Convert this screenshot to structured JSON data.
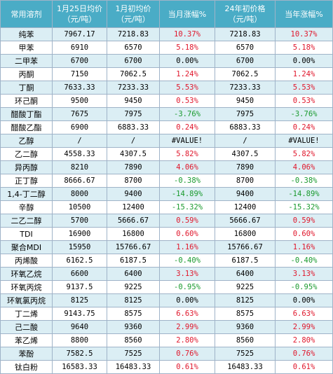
{
  "header": {
    "col1": "常用溶剂",
    "col2_line1": "1月25日均价",
    "col2_line2": "（元/吨）",
    "col3_line1": "1月初均价",
    "col3_line2": "（元/吨）",
    "col4": "当月涨幅%",
    "col5_line1": "24年初价格",
    "col5_line2": "（元/吨）",
    "col6": "当年涨幅%"
  },
  "colors": {
    "header_bg": "#4aacc6",
    "stripe": "#dbeef4",
    "positive": "#e0162b",
    "negative": "#1a9a2e"
  },
  "rows": [
    {
      "name": "纯苯",
      "price": "7967.17",
      "start": "7218.83",
      "month": "10.37%",
      "year_start": "7218.83",
      "year": "10.37%",
      "month_sign": "pos",
      "year_sign": "pos"
    },
    {
      "name": "甲苯",
      "price": "6910",
      "start": "6570",
      "month": "5.18%",
      "year_start": "6570",
      "year": "5.18%",
      "month_sign": "pos",
      "year_sign": "pos"
    },
    {
      "name": "二甲苯",
      "price": "6700",
      "start": "6700",
      "month": "0.00%",
      "year_start": "6700",
      "year": "0.00%",
      "month_sign": "zero",
      "year_sign": "zero"
    },
    {
      "name": "丙酮",
      "price": "7150",
      "start": "7062.5",
      "month": "1.24%",
      "year_start": "7062.5",
      "year": "1.24%",
      "month_sign": "pos",
      "year_sign": "pos"
    },
    {
      "name": "丁酮",
      "price": "7633.33",
      "start": "7233.33",
      "month": "5.53%",
      "year_start": "7233.33",
      "year": "5.53%",
      "month_sign": "pos",
      "year_sign": "pos"
    },
    {
      "name": "环己酮",
      "price": "9500",
      "start": "9450",
      "month": "0.53%",
      "year_start": "9450",
      "year": "0.53%",
      "month_sign": "pos",
      "year_sign": "pos"
    },
    {
      "name": "醋酸丁酯",
      "price": "7675",
      "start": "7975",
      "month": "-3.76%",
      "year_start": "7975",
      "year": "-3.76%",
      "month_sign": "neg",
      "year_sign": "neg"
    },
    {
      "name": "醋酸乙酯",
      "price": "6900",
      "start": "6883.33",
      "month": "0.24%",
      "year_start": "6883.33",
      "year": "0.24%",
      "month_sign": "pos",
      "year_sign": "pos"
    },
    {
      "name": "乙醇",
      "price": "/",
      "start": "/",
      "month": "#VALUE!",
      "year_start": "/",
      "year": "#VALUE!",
      "month_sign": "zero",
      "year_sign": "zero"
    },
    {
      "name": "乙二醇",
      "price": "4558.33",
      "start": "4307.5",
      "month": "5.82%",
      "year_start": "4307.5",
      "year": "5.82%",
      "month_sign": "pos",
      "year_sign": "pos"
    },
    {
      "name": "异丙醇",
      "price": "8210",
      "start": "7890",
      "month": "4.06%",
      "year_start": "7890",
      "year": "4.06%",
      "month_sign": "pos",
      "year_sign": "pos"
    },
    {
      "name": "正丁醇",
      "price": "8666.67",
      "start": "8700",
      "month": "-0.38%",
      "year_start": "8700",
      "year": "-0.38%",
      "month_sign": "neg",
      "year_sign": "neg"
    },
    {
      "name": "1,4-丁二醇",
      "price": "8000",
      "start": "9400",
      "month": "-14.89%",
      "year_start": "9400",
      "year": "-14.89%",
      "month_sign": "neg",
      "year_sign": "neg"
    },
    {
      "name": "辛醇",
      "price": "10500",
      "start": "12400",
      "month": "-15.32%",
      "year_start": "12400",
      "year": "-15.32%",
      "month_sign": "neg",
      "year_sign": "neg"
    },
    {
      "name": "二乙二醇",
      "price": "5700",
      "start": "5666.67",
      "month": "0.59%",
      "year_start": "5666.67",
      "year": "0.59%",
      "month_sign": "pos",
      "year_sign": "pos"
    },
    {
      "name": "TDI",
      "price": "16900",
      "start": "16800",
      "month": "0.60%",
      "year_start": "16800",
      "year": "0.60%",
      "month_sign": "pos",
      "year_sign": "pos"
    },
    {
      "name": "聚合MDI",
      "price": "15950",
      "start": "15766.67",
      "month": "1.16%",
      "year_start": "15766.67",
      "year": "1.16%",
      "month_sign": "pos",
      "year_sign": "pos"
    },
    {
      "name": "丙烯酸",
      "price": "6162.5",
      "start": "6187.5",
      "month": "-0.40%",
      "year_start": "6187.5",
      "year": "-0.40%",
      "month_sign": "neg",
      "year_sign": "neg"
    },
    {
      "name": "环氧乙烷",
      "price": "6600",
      "start": "6400",
      "month": "3.13%",
      "year_start": "6400",
      "year": "3.13%",
      "month_sign": "pos",
      "year_sign": "pos"
    },
    {
      "name": "环氧丙烷",
      "price": "9137.5",
      "start": "9225",
      "month": "-0.95%",
      "year_start": "9225",
      "year": "-0.95%",
      "month_sign": "neg",
      "year_sign": "neg"
    },
    {
      "name": "环氧氯丙烷",
      "price": "8125",
      "start": "8125",
      "month": "0.00%",
      "year_start": "8125",
      "year": "0.00%",
      "month_sign": "zero",
      "year_sign": "zero"
    },
    {
      "name": "丁二烯",
      "price": "9143.75",
      "start": "8575",
      "month": "6.63%",
      "year_start": "8575",
      "year": "6.63%",
      "month_sign": "pos",
      "year_sign": "pos"
    },
    {
      "name": "己二酸",
      "price": "9640",
      "start": "9360",
      "month": "2.99%",
      "year_start": "9360",
      "year": "2.99%",
      "month_sign": "pos",
      "year_sign": "pos"
    },
    {
      "name": "苯乙烯",
      "price": "8800",
      "start": "8560",
      "month": "2.80%",
      "year_start": "8560",
      "year": "2.80%",
      "month_sign": "pos",
      "year_sign": "pos"
    },
    {
      "name": "苯酚",
      "price": "7582.5",
      "start": "7525",
      "month": "0.76%",
      "year_start": "7525",
      "year": "0.76%",
      "month_sign": "pos",
      "year_sign": "pos"
    },
    {
      "name": "钛白粉",
      "price": "16583.33",
      "start": "16483.33",
      "month": "0.61%",
      "year_start": "16483.33",
      "year": "0.61%",
      "month_sign": "pos",
      "year_sign": "pos"
    }
  ]
}
